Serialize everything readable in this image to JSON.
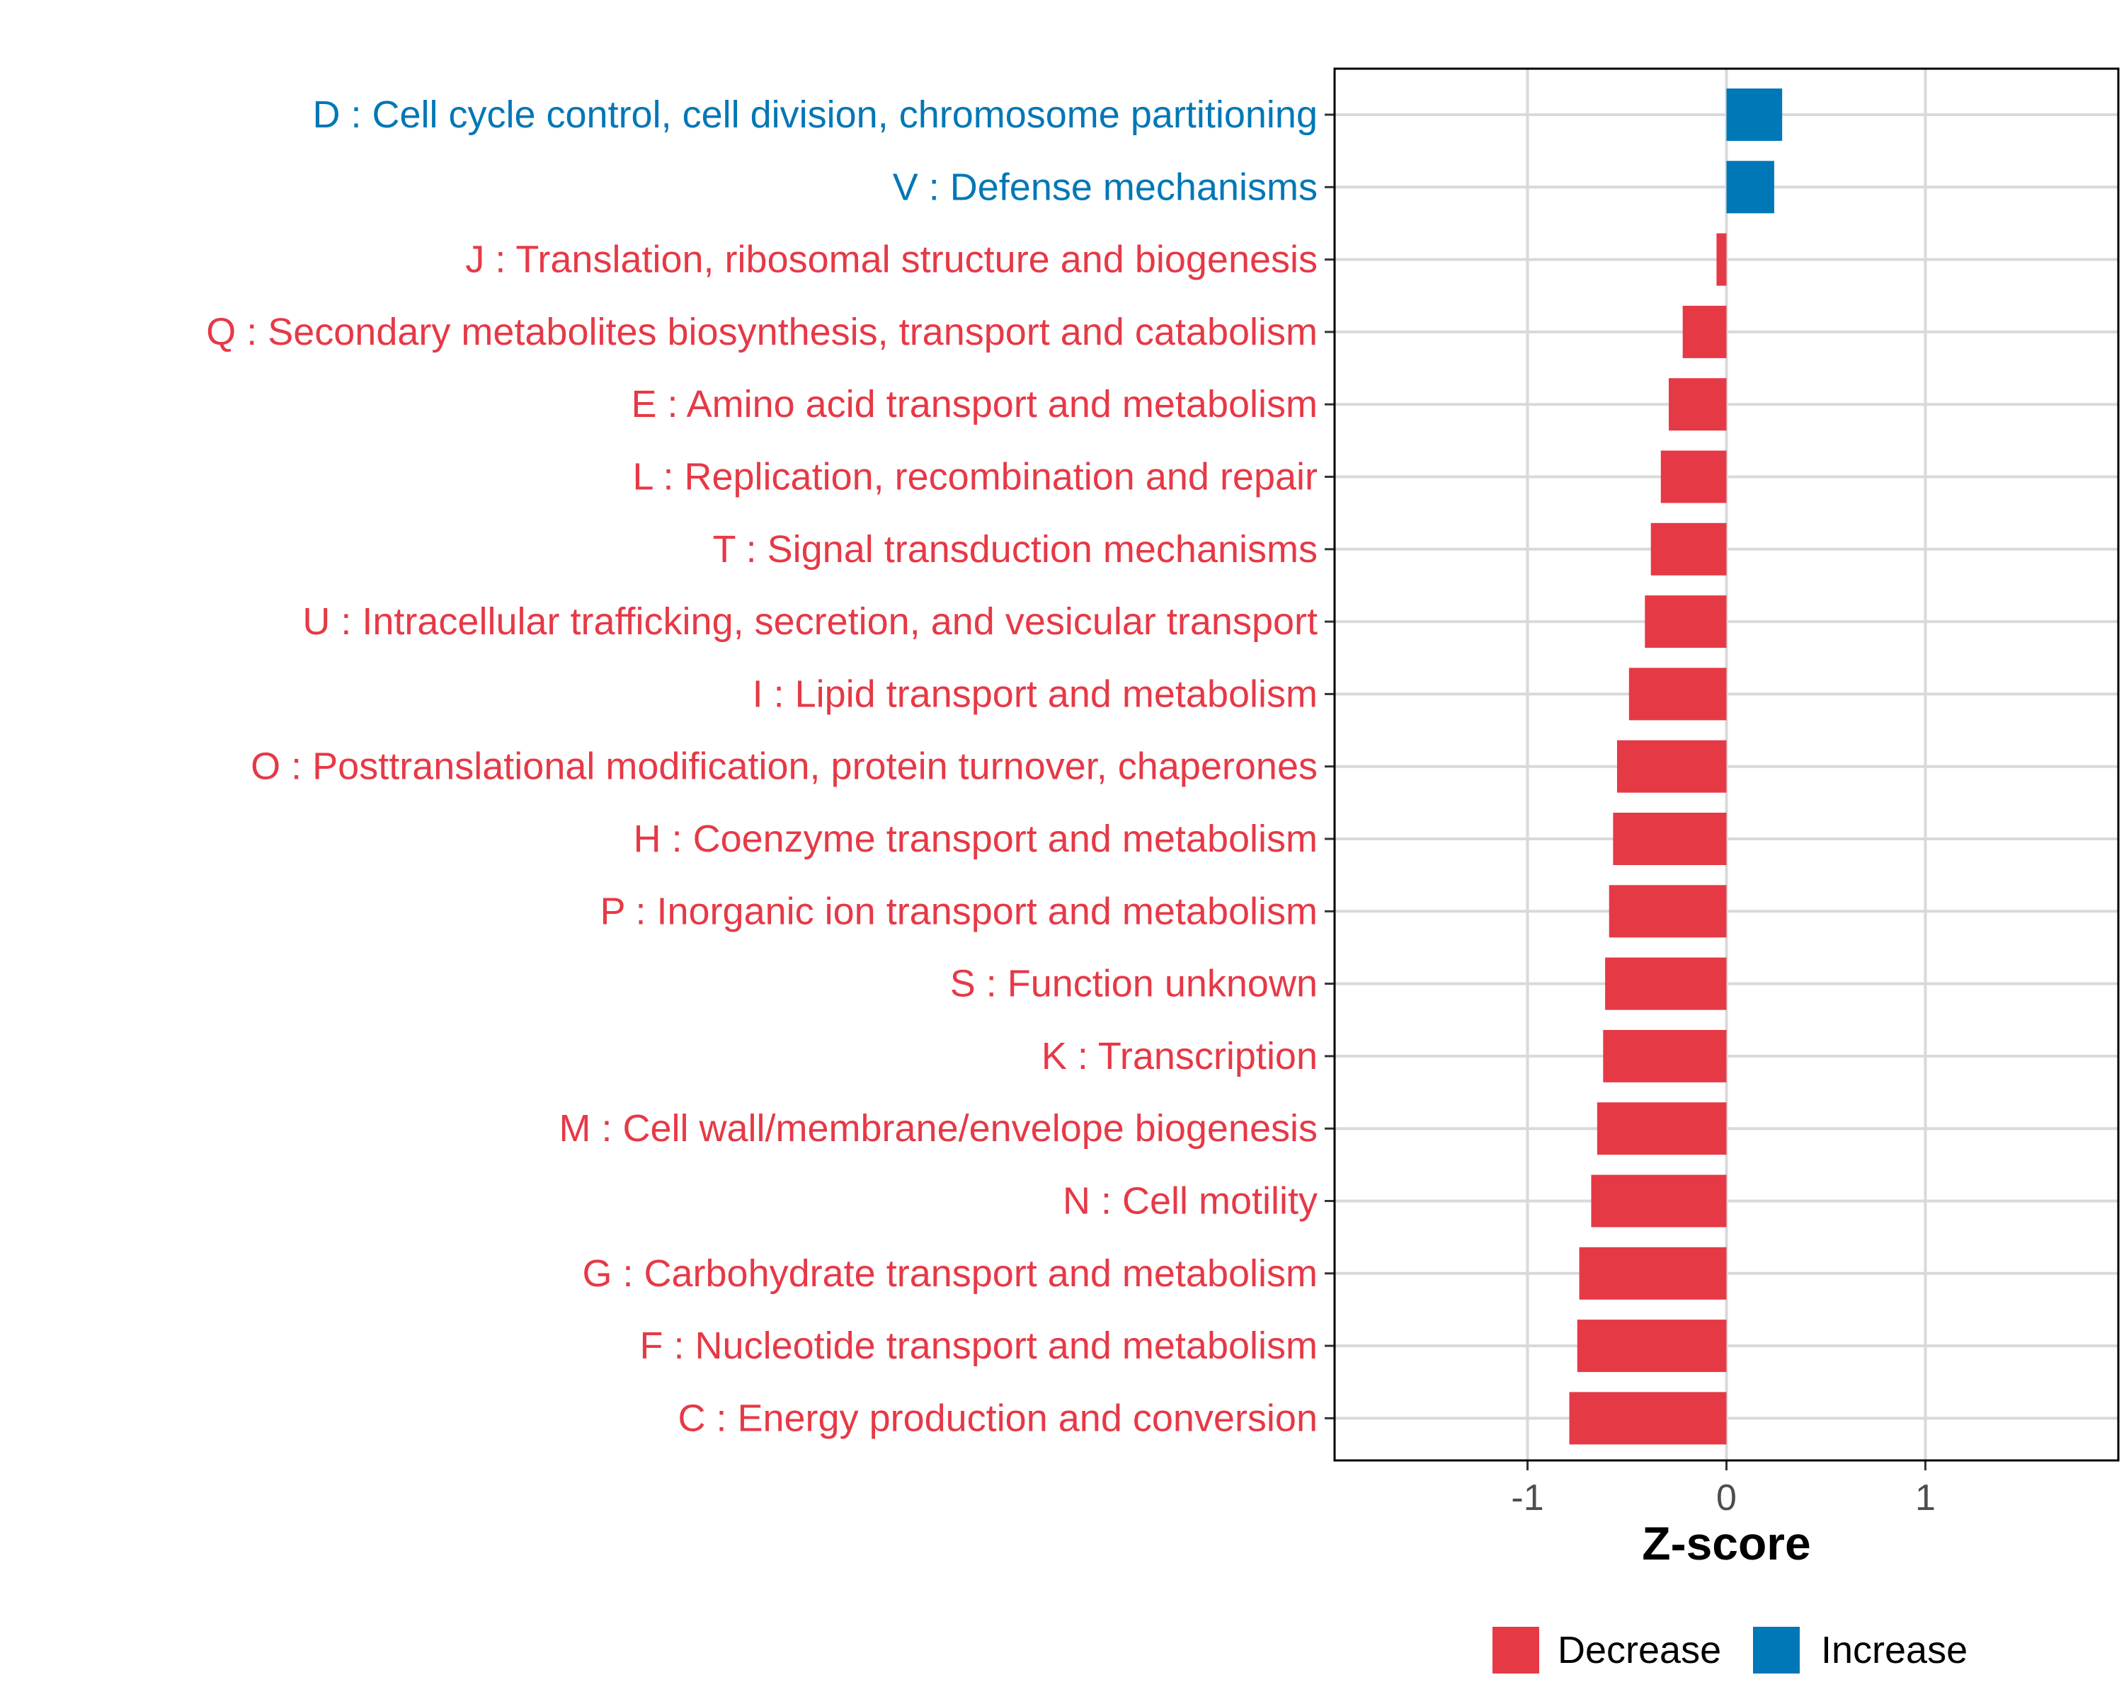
{
  "chart_data": {
    "type": "bar",
    "orientation": "horizontal",
    "title": "",
    "xlabel": "Z-score",
    "ylabel": "",
    "xlim": [
      -1.97,
      1.97
    ],
    "xticks": [
      -1,
      0,
      1
    ],
    "xtick_labels": [
      "-1",
      "0",
      "1"
    ],
    "grid": true,
    "legend_position": "bottom",
    "colors": {
      "Decrease": "#e63946",
      "Increase": "#0077b6"
    },
    "categories": [
      "D : Cell cycle control, cell division, chromosome partitioning",
      "V : Defense mechanisms",
      "J : Translation, ribosomal structure and biogenesis",
      "Q : Secondary metabolites biosynthesis, transport and catabolism",
      "E : Amino acid transport and metabolism",
      "L : Replication, recombination and repair",
      "T : Signal transduction mechanisms",
      "U : Intracellular trafficking, secretion, and vesicular transport",
      "I : Lipid transport and metabolism",
      "O : Posttranslational modification, protein turnover, chaperones",
      "H : Coenzyme transport and metabolism",
      "P : Inorganic ion transport and metabolism",
      "S : Function unknown",
      "K : Transcription",
      "M : Cell wall/membrane/envelope biogenesis",
      "N : Cell motility",
      "G : Carbohydrate transport and metabolism",
      "F : Nucleotide transport and metabolism",
      "C : Energy production and conversion"
    ],
    "values": [
      0.28,
      0.24,
      -0.05,
      -0.22,
      -0.29,
      -0.33,
      -0.38,
      -0.41,
      -0.49,
      -0.55,
      -0.57,
      -0.59,
      -0.61,
      -0.62,
      -0.65,
      -0.68,
      -0.74,
      -0.75,
      -0.79
    ],
    "groups": [
      "Increase",
      "Increase",
      "Decrease",
      "Decrease",
      "Decrease",
      "Decrease",
      "Decrease",
      "Decrease",
      "Decrease",
      "Decrease",
      "Decrease",
      "Decrease",
      "Decrease",
      "Decrease",
      "Decrease",
      "Decrease",
      "Decrease",
      "Decrease",
      "Decrease"
    ],
    "legend": [
      {
        "label": "Decrease",
        "color": "#e63946"
      },
      {
        "label": "Increase",
        "color": "#0077b6"
      }
    ]
  }
}
